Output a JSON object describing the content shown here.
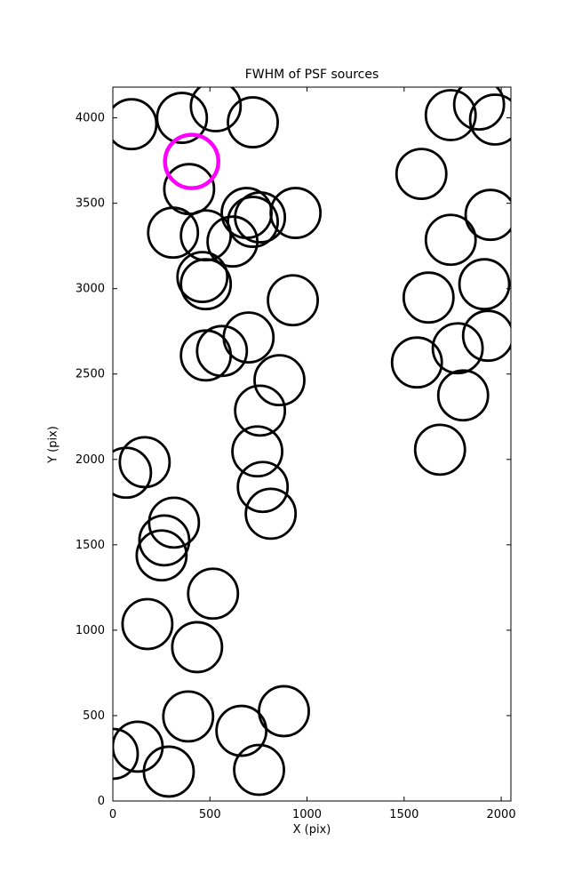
{
  "chart_data": {
    "type": "scatter",
    "title": "FWHM of PSF sources",
    "xlabel": "X (pix)",
    "ylabel": "Y (pix)",
    "xlim": [
      0,
      2050
    ],
    "ylim": [
      0,
      4180
    ],
    "x_ticks": [
      0,
      500,
      1000,
      1500,
      2000
    ],
    "y_ticks": [
      0,
      500,
      1000,
      1500,
      2000,
      2500,
      3000,
      3500,
      4000
    ],
    "grid": false,
    "legend": "none",
    "marker": {
      "shape": "circle",
      "fill": "none",
      "color": "#000000",
      "radius_px": 28,
      "stroke_px": 2.8
    },
    "highlight_marker": {
      "x": 406,
      "y": 3745,
      "color": "#ff00ff",
      "radius_px": 30,
      "stroke_px": 4.5,
      "meaning": "highlighted PSF source"
    },
    "sources": [
      {
        "x": 96,
        "y": 3963
      },
      {
        "x": 356,
        "y": 4000
      },
      {
        "x": 530,
        "y": 4068
      },
      {
        "x": 721,
        "y": 3974
      },
      {
        "x": 393,
        "y": 3583
      },
      {
        "x": 689,
        "y": 3443
      },
      {
        "x": 758,
        "y": 3417
      },
      {
        "x": 721,
        "y": 3391
      },
      {
        "x": 941,
        "y": 3443
      },
      {
        "x": 310,
        "y": 3328
      },
      {
        "x": 479,
        "y": 3312
      },
      {
        "x": 616,
        "y": 3276
      },
      {
        "x": 461,
        "y": 3068
      },
      {
        "x": 479,
        "y": 3026
      },
      {
        "x": 927,
        "y": 2932
      },
      {
        "x": 699,
        "y": 2714
      },
      {
        "x": 562,
        "y": 2635
      },
      {
        "x": 479,
        "y": 2609
      },
      {
        "x": 858,
        "y": 2464
      },
      {
        "x": 758,
        "y": 2286
      },
      {
        "x": 744,
        "y": 2047
      },
      {
        "x": 772,
        "y": 1839
      },
      {
        "x": 813,
        "y": 1682
      },
      {
        "x": 164,
        "y": 1984
      },
      {
        "x": 68,
        "y": 1922
      },
      {
        "x": 315,
        "y": 1630
      },
      {
        "x": 265,
        "y": 1526
      },
      {
        "x": 251,
        "y": 1438
      },
      {
        "x": 516,
        "y": 1214
      },
      {
        "x": 178,
        "y": 1036
      },
      {
        "x": 434,
        "y": 901
      },
      {
        "x": 388,
        "y": 495
      },
      {
        "x": 128,
        "y": 318
      },
      {
        "x": 0,
        "y": 276
      },
      {
        "x": 288,
        "y": 172
      },
      {
        "x": 662,
        "y": 411
      },
      {
        "x": 881,
        "y": 526
      },
      {
        "x": 753,
        "y": 182
      },
      {
        "x": 1740,
        "y": 4016
      },
      {
        "x": 1886,
        "y": 4078
      },
      {
        "x": 1968,
        "y": 3990
      },
      {
        "x": 1589,
        "y": 3672
      },
      {
        "x": 1740,
        "y": 3286
      },
      {
        "x": 1945,
        "y": 3432
      },
      {
        "x": 1626,
        "y": 2948
      },
      {
        "x": 1913,
        "y": 3026
      },
      {
        "x": 1932,
        "y": 2724
      },
      {
        "x": 1566,
        "y": 2568
      },
      {
        "x": 1776,
        "y": 2651
      },
      {
        "x": 1804,
        "y": 2375
      },
      {
        "x": 1685,
        "y": 2057
      }
    ]
  }
}
